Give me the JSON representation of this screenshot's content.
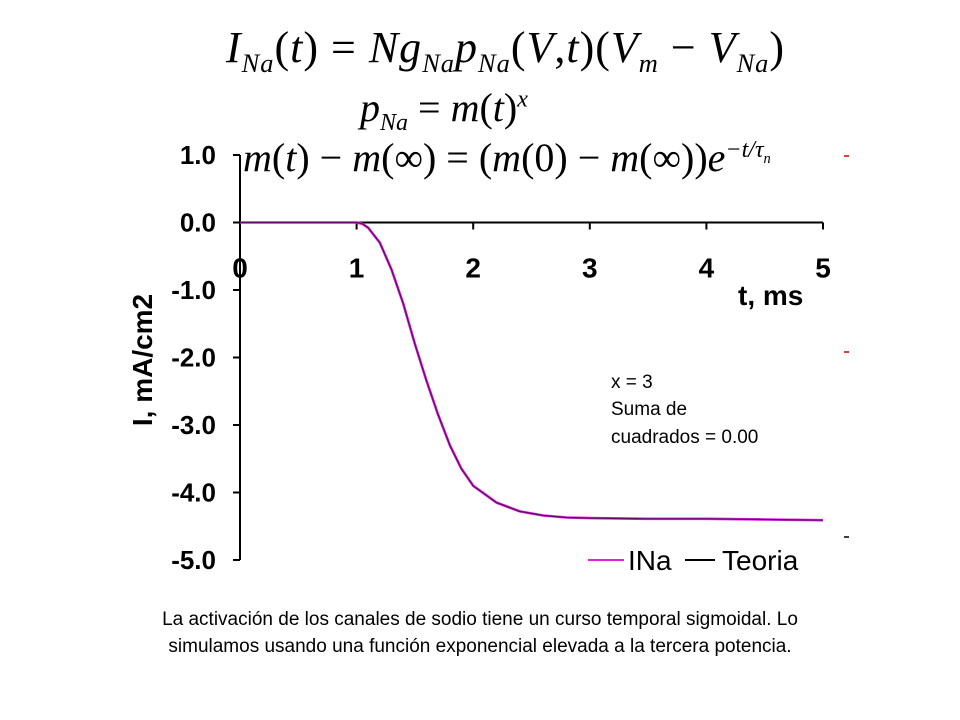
{
  "colors": {
    "ina_series": "#e020e0",
    "teoria_series": "#5a1060",
    "axis": "#000000",
    "tick_mark": "#cc0000"
  },
  "equations": {
    "eq1": "I_Na(t) = N g_Na p_Na(V,t)(V_m − V_Na)",
    "eq2": "p_Na = m(t)^x",
    "eq3": "m(t) − m(∞) = (m(0) − m(∞)) e^(−t/τ_n)"
  },
  "chart_data": {
    "type": "line",
    "xlabel": "t, ms",
    "ylabel": "I, mA/cm2",
    "xlim": [
      0,
      5
    ],
    "ylim": [
      -5.0,
      1.0
    ],
    "x_ticks": [
      "0",
      "1",
      "2",
      "3",
      "4",
      "5"
    ],
    "y_ticks": [
      "1.0",
      "0.0",
      "-1.0",
      "-2.0",
      "-3.0",
      "-4.0",
      "-5.0"
    ],
    "y_tick_values": [
      1.0,
      0.0,
      -1.0,
      -2.0,
      -3.0,
      -4.0,
      -5.0
    ],
    "legend_position": "bottom-right",
    "grid": false,
    "x": [
      0,
      0.5,
      1.0,
      1.05,
      1.1,
      1.2,
      1.3,
      1.4,
      1.5,
      1.6,
      1.7,
      1.8,
      1.9,
      2.0,
      2.2,
      2.4,
      2.6,
      2.8,
      3.0,
      3.5,
      4.0,
      4.5,
      5.0
    ],
    "series": [
      {
        "name": "INa",
        "values": [
          0,
          0,
          0,
          -0.02,
          -0.08,
          -0.3,
          -0.7,
          -1.2,
          -1.8,
          -2.35,
          -2.85,
          -3.3,
          -3.65,
          -3.9,
          -4.15,
          -4.28,
          -4.34,
          -4.37,
          -4.38,
          -4.39,
          -4.39,
          -4.4,
          -4.41
        ]
      },
      {
        "name": "Teoria",
        "values": [
          0,
          0,
          0,
          -0.02,
          -0.08,
          -0.3,
          -0.7,
          -1.2,
          -1.8,
          -2.35,
          -2.85,
          -3.3,
          -3.65,
          -3.9,
          -4.15,
          -4.28,
          -4.34,
          -4.37,
          -4.38,
          -4.39,
          -4.39,
          -4.4,
          -4.41
        ]
      }
    ],
    "annotation": {
      "line1": "x = 3",
      "line2": "Suma de",
      "line3": "cuadrados = 0.00"
    }
  },
  "caption": {
    "line1": "La activación de los canales de sodio tiene un curso temporal sigmoidal. Lo",
    "line2": "simulamos usando una función exponencial elevada a la tercera potencia."
  }
}
